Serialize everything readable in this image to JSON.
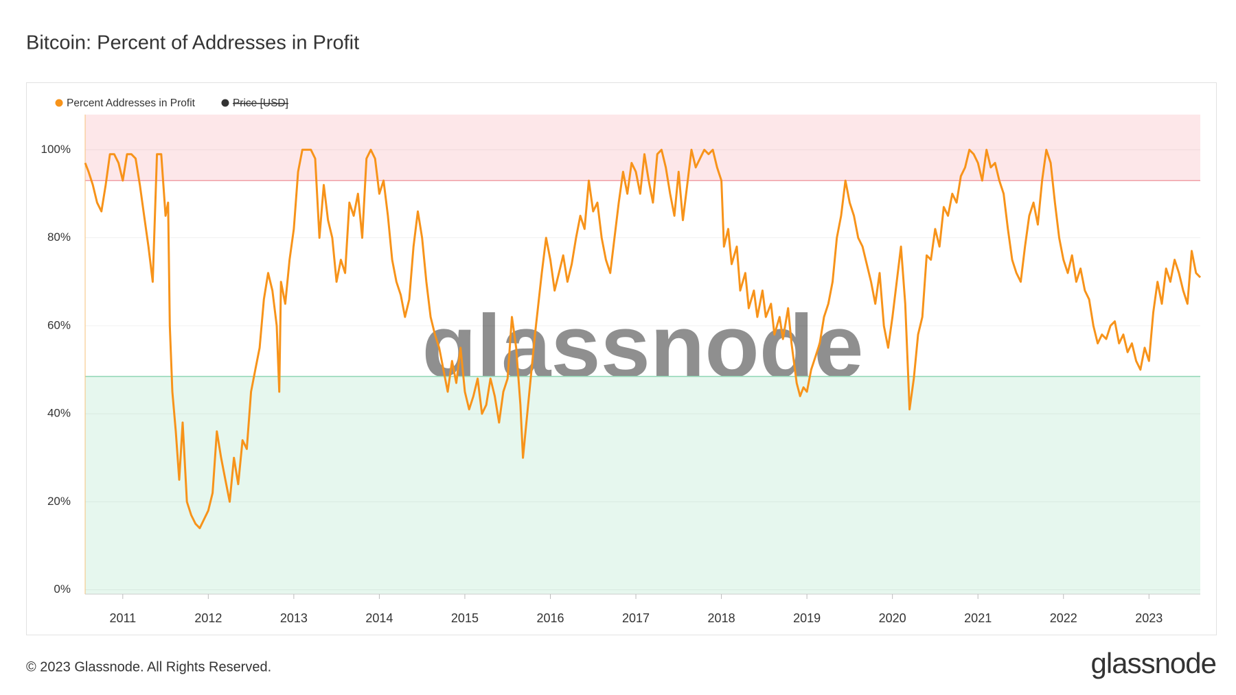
{
  "chart_data": {
    "type": "line",
    "title": "Bitcoin: Percent of Addresses in Profit",
    "watermark": "glassnode",
    "footer": "© 2023 Glassnode. All Rights Reserved.",
    "logo": "glassnode",
    "xlim": [
      2010.56,
      2023.6
    ],
    "xticks": [
      2011,
      2012,
      2013,
      2014,
      2015,
      2016,
      2017,
      2018,
      2019,
      2020,
      2021,
      2022,
      2023
    ],
    "ylim": [
      -1,
      108
    ],
    "yticks": [
      {
        "value": 0,
        "label": "0%"
      },
      {
        "value": 20,
        "label": "20%"
      },
      {
        "value": 40,
        "label": "40%"
      },
      {
        "value": 60,
        "label": "60%"
      },
      {
        "value": 80,
        "label": "80%"
      },
      {
        "value": 100,
        "label": "100%"
      }
    ],
    "grid": true,
    "bands": [
      {
        "from": 93,
        "to": 108,
        "color": "#fde7e9",
        "line": "#f0a0a8"
      },
      {
        "from": -1,
        "to": 48.5,
        "color": "#e6f7ee",
        "line": "#8fd6b4"
      }
    ],
    "hidden_series": [
      {
        "name": "Price [USD]",
        "color": "#333333"
      }
    ],
    "x": [
      2010.56,
      2010.6,
      2010.65,
      2010.7,
      2010.75,
      2010.8,
      2010.85,
      2010.9,
      2010.95,
      2011.0,
      2011.05,
      2011.1,
      2011.15,
      2011.2,
      2011.25,
      2011.3,
      2011.35,
      2011.4,
      2011.45,
      2011.5,
      2011.53,
      2011.55,
      2011.58,
      2011.62,
      2011.66,
      2011.7,
      2011.75,
      2011.8,
      2011.85,
      2011.9,
      2011.95,
      2012.0,
      2012.05,
      2012.1,
      2012.15,
      2012.2,
      2012.25,
      2012.3,
      2012.35,
      2012.4,
      2012.45,
      2012.5,
      2012.55,
      2012.6,
      2012.65,
      2012.7,
      2012.75,
      2012.8,
      2012.83,
      2012.85,
      2012.9,
      2012.95,
      2013.0,
      2013.05,
      2013.1,
      2013.2,
      2013.25,
      2013.3,
      2013.35,
      2013.4,
      2013.45,
      2013.5,
      2013.55,
      2013.6,
      2013.65,
      2013.7,
      2013.75,
      2013.8,
      2013.85,
      2013.9,
      2013.95,
      2014.0,
      2014.05,
      2014.1,
      2014.15,
      2014.2,
      2014.25,
      2014.3,
      2014.35,
      2014.4,
      2014.45,
      2014.5,
      2014.55,
      2014.6,
      2014.65,
      2014.7,
      2014.75,
      2014.8,
      2014.85,
      2014.9,
      2014.95,
      2015.0,
      2015.05,
      2015.1,
      2015.15,
      2015.2,
      2015.25,
      2015.3,
      2015.35,
      2015.4,
      2015.45,
      2015.5,
      2015.55,
      2015.6,
      2015.65,
      2015.68,
      2015.72,
      2015.78,
      2015.82,
      2015.9,
      2015.95,
      2016.0,
      2016.05,
      2016.1,
      2016.15,
      2016.2,
      2016.25,
      2016.3,
      2016.35,
      2016.4,
      2016.45,
      2016.5,
      2016.55,
      2016.6,
      2016.65,
      2016.7,
      2016.75,
      2016.8,
      2016.85,
      2016.9,
      2016.95,
      2017.0,
      2017.05,
      2017.1,
      2017.15,
      2017.2,
      2017.25,
      2017.3,
      2017.35,
      2017.4,
      2017.45,
      2017.5,
      2017.55,
      2017.6,
      2017.65,
      2017.7,
      2017.75,
      2017.8,
      2017.85,
      2017.9,
      2017.95,
      2018.0,
      2018.03,
      2018.08,
      2018.12,
      2018.18,
      2018.22,
      2018.28,
      2018.32,
      2018.38,
      2018.42,
      2018.48,
      2018.52,
      2018.58,
      2018.62,
      2018.68,
      2018.72,
      2018.78,
      2018.82,
      2018.88,
      2018.92,
      2018.96,
      2019.0,
      2019.05,
      2019.1,
      2019.15,
      2019.2,
      2019.25,
      2019.3,
      2019.35,
      2019.4,
      2019.45,
      2019.5,
      2019.55,
      2019.6,
      2019.65,
      2019.7,
      2019.75,
      2019.8,
      2019.85,
      2019.9,
      2019.95,
      2020.0,
      2020.05,
      2020.1,
      2020.15,
      2020.2,
      2020.25,
      2020.3,
      2020.35,
      2020.4,
      2020.45,
      2020.5,
      2020.55,
      2020.6,
      2020.65,
      2020.7,
      2020.75,
      2020.8,
      2020.85,
      2020.9,
      2020.95,
      2021.0,
      2021.05,
      2021.1,
      2021.15,
      2021.2,
      2021.25,
      2021.3,
      2021.35,
      2021.4,
      2021.45,
      2021.5,
      2021.55,
      2021.6,
      2021.65,
      2021.7,
      2021.75,
      2021.8,
      2021.85,
      2021.9,
      2021.95,
      2022.0,
      2022.05,
      2022.1,
      2022.15,
      2022.2,
      2022.25,
      2022.3,
      2022.35,
      2022.4,
      2022.45,
      2022.5,
      2022.55,
      2022.6,
      2022.65,
      2022.7,
      2022.75,
      2022.8,
      2022.85,
      2022.9,
      2022.95,
      2023.0,
      2023.05,
      2023.1,
      2023.15,
      2023.2,
      2023.25,
      2023.3,
      2023.35,
      2023.4,
      2023.45,
      2023.5,
      2023.55,
      2023.6
    ],
    "series": [
      {
        "name": "Percent Addresses in Profit",
        "color": "#f7931a",
        "values": [
          97,
          95,
          92,
          88,
          86,
          92,
          99,
          99,
          97,
          93,
          99,
          99,
          98,
          92,
          85,
          78,
          70,
          99,
          99,
          85,
          88,
          60,
          45,
          36,
          25,
          38,
          20,
          17,
          15,
          14,
          16,
          18,
          22,
          36,
          30,
          25,
          20,
          30,
          24,
          34,
          32,
          45,
          50,
          55,
          66,
          72,
          68,
          60,
          45,
          70,
          65,
          75,
          82,
          95,
          100,
          100,
          98,
          80,
          92,
          84,
          80,
          70,
          75,
          72,
          88,
          85,
          90,
          80,
          98,
          100,
          98,
          90,
          93,
          85,
          75,
          70,
          67,
          62,
          66,
          78,
          86,
          80,
          70,
          62,
          58,
          55,
          50,
          45,
          52,
          47,
          55,
          45,
          41,
          44,
          48,
          40,
          42,
          48,
          44,
          38,
          45,
          48,
          62,
          55,
          42,
          30,
          38,
          50,
          58,
          72,
          80,
          75,
          68,
          72,
          76,
          70,
          74,
          80,
          85,
          82,
          93,
          86,
          88,
          80,
          75,
          72,
          80,
          88,
          95,
          90,
          97,
          95,
          90,
          99,
          93,
          88,
          99,
          100,
          96,
          90,
          85,
          95,
          84,
          92,
          100,
          96,
          98,
          100,
          99,
          100,
          96,
          93,
          78,
          82,
          74,
          78,
          68,
          72,
          64,
          68,
          62,
          68,
          62,
          65,
          58,
          62,
          57,
          64,
          56,
          47,
          44,
          46,
          45,
          50,
          53,
          56,
          62,
          65,
          70,
          80,
          85,
          93,
          88,
          85,
          80,
          78,
          74,
          70,
          65,
          72,
          60,
          55,
          62,
          70,
          78,
          65,
          41,
          48,
          58,
          62,
          76,
          75,
          82,
          78,
          87,
          85,
          90,
          88,
          94,
          96,
          100,
          99,
          97,
          93,
          100,
          96,
          97,
          93,
          90,
          82,
          75,
          72,
          70,
          78,
          85,
          88,
          83,
          93,
          100,
          97,
          88,
          80,
          75,
          72,
          76,
          70,
          73,
          68,
          66,
          60,
          56,
          58,
          57,
          60,
          61,
          56,
          58,
          54,
          56,
          52,
          50,
          55,
          52,
          63,
          70,
          65,
          73,
          70,
          75,
          72,
          68,
          65,
          77,
          72,
          71
        ]
      }
    ]
  }
}
